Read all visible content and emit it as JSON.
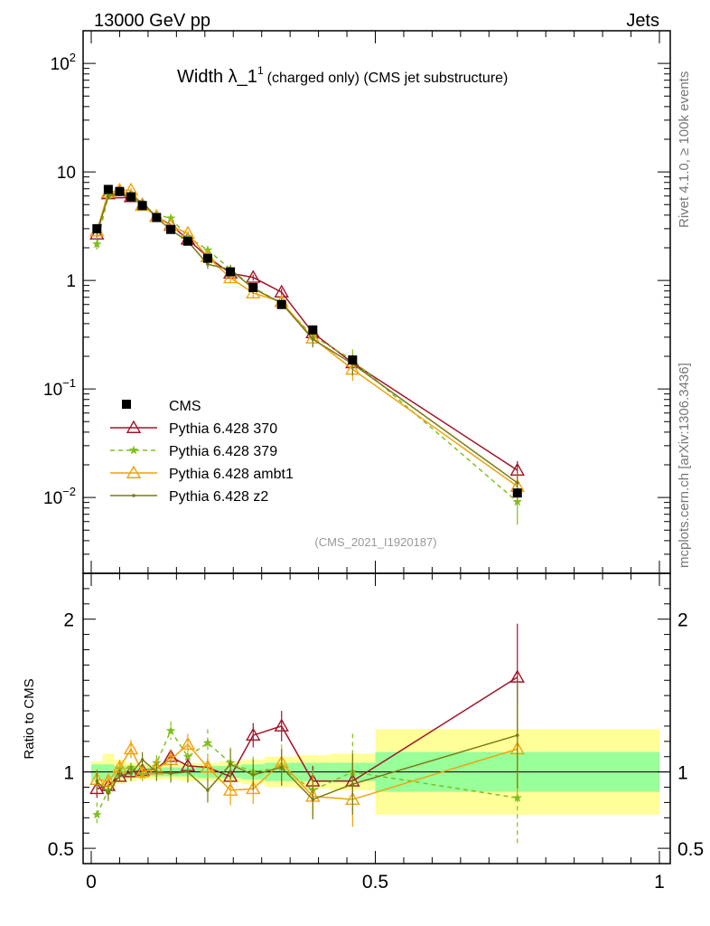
{
  "header": {
    "left": "13000 GeV pp",
    "right": "Jets"
  },
  "side": {
    "rivet": "Rivet 4.1.0, ≥ 100k events",
    "mcplots": "mcplots.cern.ch [arXiv:1306.3436]"
  },
  "chart_data": {
    "type": "line",
    "title_main": "Width λ_1",
    "title_sup": "1",
    "title_rest": "(charged only) (CMS jet substructure)",
    "analysis_id": "(CMS_2021_I1920187)",
    "xlim": [
      0,
      1
    ],
    "ylim_main_log": [
      0.002,
      200
    ],
    "ylim_ratio": [
      0.4,
      2.3
    ],
    "main_ticks": [
      {
        "v": 100,
        "base": "10",
        "exp": "2"
      },
      {
        "v": 10,
        "base": "10",
        "exp": ""
      },
      {
        "v": 1,
        "base": "1",
        "exp": ""
      },
      {
        "v": 0.1,
        "base": "10",
        "exp": "−1"
      },
      {
        "v": 0.01,
        "base": "10",
        "exp": "−2"
      }
    ],
    "ratio_ticks": [
      {
        "v": 2,
        "label": "2"
      },
      {
        "v": 1,
        "label": "1"
      },
      {
        "v": 0.5,
        "label": "0.5"
      }
    ],
    "x_ticks": [
      {
        "v": 0,
        "label": "0"
      },
      {
        "v": 0.5,
        "label": "0.5"
      },
      {
        "v": 1,
        "label": "1"
      }
    ],
    "ratio_ylabel": "Ratio to CMS",
    "x": [
      0.01,
      0.03,
      0.05,
      0.07,
      0.09,
      0.115,
      0.14,
      0.17,
      0.205,
      0.245,
      0.285,
      0.335,
      0.39,
      0.46,
      0.75
    ],
    "data": {
      "name": "CMS",
      "values": [
        3.0,
        6.9,
        6.6,
        5.9,
        4.9,
        3.8,
        2.95,
        2.3,
        1.6,
        1.2,
        0.86,
        0.6,
        0.35,
        0.185,
        0.011
      ],
      "band_edges": [
        0,
        0.02,
        0.04,
        0.06,
        0.08,
        0.1,
        0.13,
        0.155,
        0.185,
        0.225,
        0.265,
        0.305,
        0.36,
        0.42,
        0.5,
        1.0
      ],
      "band_green": [
        0.05,
        0.05,
        0.04,
        0.03,
        0.03,
        0.03,
        0.03,
        0.03,
        0.04,
        0.04,
        0.05,
        0.06,
        0.06,
        0.06,
        0.13
      ],
      "band_yellow": [
        0.07,
        0.12,
        0.08,
        0.06,
        0.05,
        0.05,
        0.05,
        0.06,
        0.06,
        0.07,
        0.08,
        0.1,
        0.11,
        0.12,
        0.28
      ]
    },
    "series": [
      {
        "name": "Pythia 6.428 370",
        "color": "#a0152a",
        "marker": "triangle-open",
        "dash": "",
        "ratio": [
          0.89,
          0.91,
          0.97,
          1.0,
          1.01,
          1.02,
          1.1,
          1.04,
          1.03,
          0.97,
          1.24,
          1.3,
          0.94,
          0.94,
          1.62
        ],
        "rerr": [
          0.06,
          0.04,
          0.03,
          0.03,
          0.03,
          0.03,
          0.04,
          0.05,
          0.06,
          0.07,
          0.08,
          0.1,
          0.1,
          0.12,
          0.35
        ]
      },
      {
        "name": "Pythia 6.428 379",
        "color": "#7fbf1f",
        "marker": "star",
        "dash": "5,4",
        "ratio": [
          0.72,
          0.88,
          1.02,
          1.03,
          0.98,
          1.06,
          1.27,
          1.1,
          1.19,
          1.06,
          1.0,
          1.03,
          0.88,
          1.0,
          0.83
        ],
        "rerr": [
          0.08,
          0.05,
          0.04,
          0.03,
          0.04,
          0.05,
          0.06,
          0.07,
          0.09,
          0.1,
          0.1,
          0.12,
          0.13,
          0.25,
          0.32
        ]
      },
      {
        "name": "Pythia 6.428 ambt1",
        "color": "#f0a20a",
        "marker": "triangle-open",
        "dash": "",
        "ratio": [
          0.95,
          0.94,
          1.03,
          1.15,
          1.0,
          1.02,
          1.08,
          1.18,
          1.03,
          0.88,
          0.89,
          1.06,
          0.84,
          0.82,
          1.15
        ],
        "rerr": [
          0.07,
          0.05,
          0.05,
          0.06,
          0.05,
          0.06,
          0.06,
          0.07,
          0.08,
          0.1,
          0.1,
          0.12,
          0.14,
          0.18,
          0.3
        ]
      },
      {
        "name": "Pythia 6.428 z2",
        "color": "#7a7a14",
        "marker": "dot",
        "dash": "",
        "ratio": [
          0.94,
          0.86,
          0.98,
          0.99,
          1.08,
          1.0,
          0.99,
          1.0,
          0.88,
          1.05,
          0.98,
          1.03,
          0.82,
          0.92,
          1.24
        ],
        "rerr": [
          0.07,
          0.05,
          0.04,
          0.05,
          0.05,
          0.06,
          0.06,
          0.07,
          0.08,
          0.1,
          0.1,
          0.12,
          0.13,
          0.2,
          0.35
        ]
      }
    ]
  }
}
